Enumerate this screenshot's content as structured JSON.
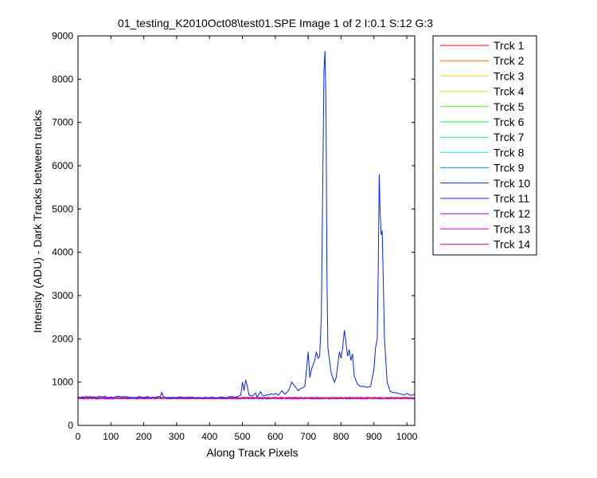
{
  "chart_data": {
    "type": "line",
    "title": "01_testing_K2010Oct08\\test01.SPE  Image 1 of 2  I:0.1  S:12  G:3",
    "xlabel": "Along Track Pixels",
    "ylabel": "Intensity (ADU) - Dark Tracks between tracks",
    "xlim": [
      0,
      1024
    ],
    "ylim": [
      0,
      9000
    ],
    "xticks": [
      0,
      100,
      200,
      300,
      400,
      500,
      600,
      700,
      800,
      900,
      1000
    ],
    "yticks": [
      0,
      1000,
      2000,
      3000,
      4000,
      5000,
      6000,
      7000,
      8000,
      9000
    ],
    "grid": false,
    "legend_position": "outside-right",
    "baseline_level": 630,
    "series": [
      {
        "name": "Trck 1",
        "color": "#ff0000",
        "values": "flat ~630 across 0-1024"
      },
      {
        "name": "Trck 2",
        "color": "#ff6e00",
        "values": "flat ~630 across 0-1024"
      },
      {
        "name": "Trck 3",
        "color": "#ffdb00",
        "values": "flat ~630 across 0-1024"
      },
      {
        "name": "Trck 4",
        "color": "#b6ff00",
        "values": "flat ~630 across 0-1024"
      },
      {
        "name": "Trck 5",
        "color": "#49ff00",
        "values": "flat ~630 across 0-1024"
      },
      {
        "name": "Trck 6",
        "color": "#00ff24",
        "values": "flat ~630 across 0-1024"
      },
      {
        "name": "Trck 7",
        "color": "#00ff92",
        "values": "flat ~630 across 0-1024"
      },
      {
        "name": "Trck 8",
        "color": "#00ffff",
        "values": "flat ~630 across 0-1024"
      },
      {
        "name": "Trck 9",
        "color": "#0092ff",
        "values": "flat ~630 across 0-1024"
      },
      {
        "name": "Trck 10",
        "color": "#0024ff",
        "points": [
          [
            0,
            660
          ],
          [
            100,
            660
          ],
          [
            200,
            650
          ],
          [
            250,
            660
          ],
          [
            255,
            760
          ],
          [
            260,
            660
          ],
          [
            300,
            640
          ],
          [
            400,
            640
          ],
          [
            480,
            650
          ],
          [
            495,
            700
          ],
          [
            500,
            1000
          ],
          [
            505,
            800
          ],
          [
            510,
            1050
          ],
          [
            515,
            900
          ],
          [
            520,
            700
          ],
          [
            530,
            680
          ],
          [
            540,
            750
          ],
          [
            545,
            650
          ],
          [
            555,
            780
          ],
          [
            560,
            700
          ],
          [
            580,
            700
          ],
          [
            600,
            740
          ],
          [
            610,
            700
          ],
          [
            620,
            800
          ],
          [
            630,
            720
          ],
          [
            640,
            800
          ],
          [
            650,
            1000
          ],
          [
            660,
            900
          ],
          [
            670,
            800
          ],
          [
            690,
            900
          ],
          [
            700,
            1700
          ],
          [
            705,
            1100
          ],
          [
            710,
            1300
          ],
          [
            720,
            1500
          ],
          [
            725,
            1700
          ],
          [
            730,
            1550
          ],
          [
            735,
            1600
          ],
          [
            740,
            2500
          ],
          [
            745,
            6000
          ],
          [
            748,
            8200
          ],
          [
            751,
            8650
          ],
          [
            754,
            7500
          ],
          [
            757,
            3500
          ],
          [
            760,
            1800
          ],
          [
            770,
            1200
          ],
          [
            780,
            1000
          ],
          [
            785,
            1100
          ],
          [
            790,
            1400
          ],
          [
            795,
            1700
          ],
          [
            800,
            1550
          ],
          [
            805,
            1800
          ],
          [
            810,
            2200
          ],
          [
            815,
            1900
          ],
          [
            820,
            1600
          ],
          [
            825,
            1750
          ],
          [
            830,
            1500
          ],
          [
            835,
            1650
          ],
          [
            840,
            1150
          ],
          [
            850,
            950
          ],
          [
            860,
            900
          ],
          [
            870,
            900
          ],
          [
            880,
            880
          ],
          [
            890,
            900
          ],
          [
            900,
            1300
          ],
          [
            905,
            1800
          ],
          [
            910,
            2000
          ],
          [
            913,
            3500
          ],
          [
            916,
            5800
          ],
          [
            919,
            4900
          ],
          [
            922,
            4400
          ],
          [
            925,
            4500
          ],
          [
            928,
            3500
          ],
          [
            932,
            2000
          ],
          [
            940,
            1000
          ],
          [
            950,
            780
          ],
          [
            960,
            760
          ],
          [
            980,
            730
          ],
          [
            990,
            700
          ],
          [
            1000,
            740
          ],
          [
            1010,
            700
          ],
          [
            1024,
            730
          ]
        ]
      },
      {
        "name": "Trck 11",
        "color": "#4900ff",
        "values": "flat ~630 across 0-1024"
      },
      {
        "name": "Trck 12",
        "color": "#b600ff",
        "values": "flat ~630 across 0-1024"
      },
      {
        "name": "Trck 13",
        "color": "#ff00db",
        "values": "flat ~630 across 0-1024"
      },
      {
        "name": "Trck 14",
        "color": "#ff006d",
        "values": "flat ~630 across 0-1024"
      }
    ]
  }
}
